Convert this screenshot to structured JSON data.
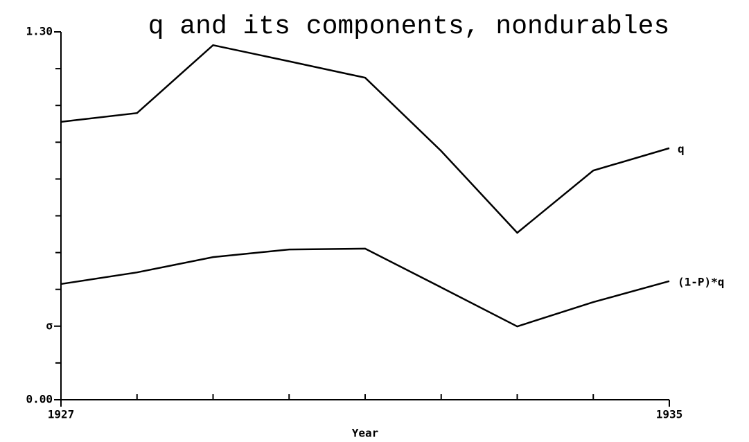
{
  "chart_data": {
    "type": "line",
    "title": "q and its components, nondurables",
    "x_label": "Year",
    "x": [
      1927,
      1928,
      1929,
      1930,
      1931,
      1932,
      1933,
      1934,
      1935
    ],
    "series": [
      {
        "name": "q",
        "color": "#000000",
        "values": [
          0.982,
          1.013,
          1.253,
          1.196,
          1.138,
          0.879,
          0.59,
          0.81,
          0.889
        ]
      },
      {
        "name": "(1-P)*q",
        "color": "#000000",
        "values": [
          0.409,
          0.45,
          0.504,
          0.531,
          0.534,
          0.397,
          0.259,
          0.345,
          0.419
        ]
      }
    ],
    "xlim": [
      1927,
      1935
    ],
    "xticks": [
      1927,
      1935
    ],
    "xminor_ticks": [
      1928,
      1929,
      1930,
      1931,
      1932,
      1933,
      1934
    ],
    "ylim": [
      0,
      1.3
    ],
    "yticks": [
      {
        "value": 0,
        "label": "0.00"
      },
      {
        "value": 0.26,
        "label": "σ"
      },
      {
        "value": 1.3,
        "label": "1.30"
      }
    ],
    "yminor_ticks": [
      0.13,
      0.39,
      0.52,
      0.65,
      0.78,
      0.91,
      1.04,
      1.17
    ],
    "legend": "line-end"
  }
}
